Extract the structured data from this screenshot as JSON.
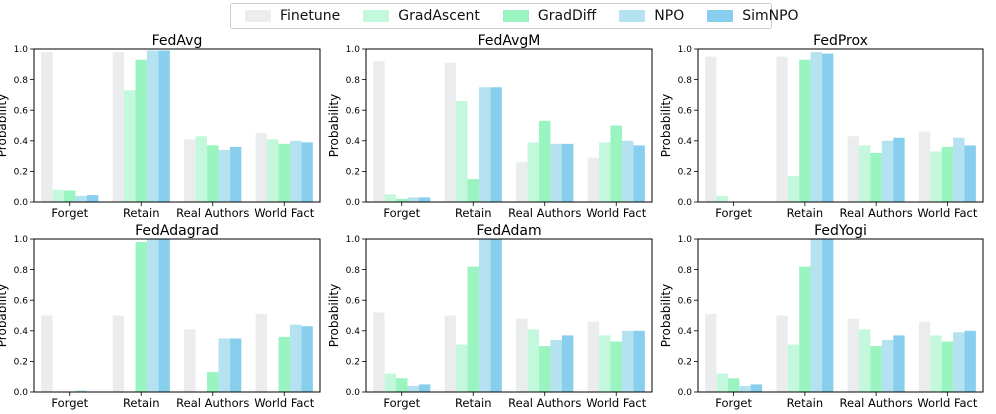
{
  "chart_data": {
    "type": "bar",
    "layout": "2x3 grid of grouped bar charts",
    "legend": {
      "placement": "top-center",
      "entries": [
        {
          "name": "Finetune",
          "color": "#ebecee"
        },
        {
          "name": "GradAscent",
          "color": "#c3f8dc"
        },
        {
          "name": "GradDiff",
          "color": "#99f4bf"
        },
        {
          "name": "NPO",
          "color": "#b5e2f0"
        },
        {
          "name": "SimNPO",
          "color": "#88cfee"
        }
      ]
    },
    "categories": [
      "Forget",
      "Retain",
      "Real Authors",
      "World Fact"
    ],
    "ylabel": "Probability",
    "ylim": [
      0,
      1.0
    ],
    "yticks": [
      "0.0",
      "0.2",
      "0.4",
      "0.6",
      "0.8",
      "1.0"
    ],
    "subplots": [
      {
        "title": "FedAvg",
        "series": [
          {
            "name": "Finetune",
            "values": [
              0.98,
              0.98,
              0.41,
              0.45
            ]
          },
          {
            "name": "GradAscent",
            "values": [
              0.08,
              0.73,
              0.43,
              0.41
            ]
          },
          {
            "name": "GradDiff",
            "values": [
              0.075,
              0.93,
              0.37,
              0.38
            ]
          },
          {
            "name": "NPO",
            "values": [
              0.04,
              0.99,
              0.34,
              0.4
            ]
          },
          {
            "name": "SimNPO",
            "values": [
              0.045,
              0.99,
              0.36,
              0.39
            ]
          }
        ]
      },
      {
        "title": "FedAvgM",
        "series": [
          {
            "name": "Finetune",
            "values": [
              0.92,
              0.91,
              0.26,
              0.29
            ]
          },
          {
            "name": "GradAscent",
            "values": [
              0.05,
              0.66,
              0.39,
              0.39
            ]
          },
          {
            "name": "GradDiff",
            "values": [
              0.02,
              0.15,
              0.53,
              0.5
            ]
          },
          {
            "name": "NPO",
            "values": [
              0.03,
              0.75,
              0.38,
              0.4
            ]
          },
          {
            "name": "SimNPO",
            "values": [
              0.03,
              0.75,
              0.38,
              0.37
            ]
          }
        ]
      },
      {
        "title": "FedProx",
        "series": [
          {
            "name": "Finetune",
            "values": [
              0.95,
              0.95,
              0.43,
              0.46
            ]
          },
          {
            "name": "GradAscent",
            "values": [
              0.04,
              0.17,
              0.37,
              0.33
            ]
          },
          {
            "name": "GradDiff",
            "values": [
              0.0,
              0.93,
              0.32,
              0.36
            ]
          },
          {
            "name": "NPO",
            "values": [
              0.0,
              0.98,
              0.4,
              0.42
            ]
          },
          {
            "name": "SimNPO",
            "values": [
              0.0,
              0.97,
              0.42,
              0.37
            ]
          }
        ]
      },
      {
        "title": "FedAdagrad",
        "series": [
          {
            "name": "Finetune",
            "values": [
              0.5,
              0.5,
              0.41,
              0.51
            ]
          },
          {
            "name": "GradAscent",
            "values": [
              0.0,
              0.0,
              0.0,
              0.0
            ]
          },
          {
            "name": "GradDiff",
            "values": [
              0.0,
              0.98,
              0.13,
              0.36
            ]
          },
          {
            "name": "NPO",
            "values": [
              0.01,
              1.0,
              0.35,
              0.44
            ]
          },
          {
            "name": "SimNPO",
            "values": [
              0.0,
              1.0,
              0.35,
              0.43
            ]
          }
        ]
      },
      {
        "title": "FedAdam",
        "series": [
          {
            "name": "Finetune",
            "values": [
              0.52,
              0.5,
              0.48,
              0.46
            ]
          },
          {
            "name": "GradAscent",
            "values": [
              0.12,
              0.31,
              0.41,
              0.37
            ]
          },
          {
            "name": "GradDiff",
            "values": [
              0.09,
              0.82,
              0.3,
              0.33
            ]
          },
          {
            "name": "NPO",
            "values": [
              0.04,
              1.0,
              0.34,
              0.4
            ]
          },
          {
            "name": "SimNPO",
            "values": [
              0.05,
              1.0,
              0.37,
              0.4
            ]
          }
        ]
      },
      {
        "title": "FedYogi",
        "series": [
          {
            "name": "Finetune",
            "values": [
              0.51,
              0.5,
              0.48,
              0.46
            ]
          },
          {
            "name": "GradAscent",
            "values": [
              0.12,
              0.31,
              0.41,
              0.37
            ]
          },
          {
            "name": "GradDiff",
            "values": [
              0.09,
              0.82,
              0.3,
              0.33
            ]
          },
          {
            "name": "NPO",
            "values": [
              0.04,
              1.0,
              0.34,
              0.39
            ]
          },
          {
            "name": "SimNPO",
            "values": [
              0.05,
              1.0,
              0.37,
              0.4
            ]
          }
        ]
      }
    ]
  }
}
